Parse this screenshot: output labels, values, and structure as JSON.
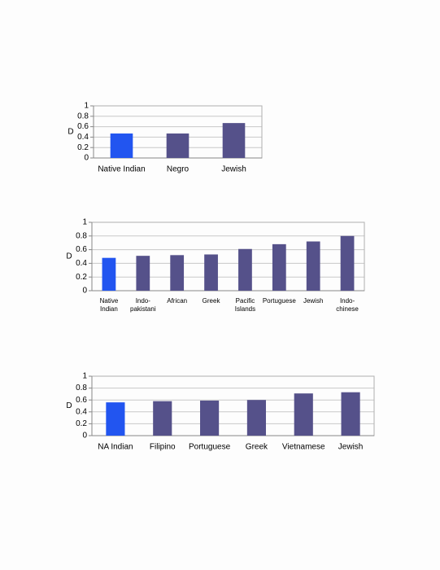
{
  "chart_data": [
    {
      "type": "bar",
      "ylabel": "D",
      "categories": [
        "Native Indian",
        "Negro",
        "Jewish"
      ],
      "values": [
        0.47,
        0.47,
        0.67
      ],
      "colors": [
        "#2255f0",
        "#55518a",
        "#55518a"
      ],
      "ylim": [
        0,
        1
      ],
      "yticks": [
        0,
        0.2,
        0.4,
        0.6,
        0.8,
        1
      ],
      "grid": true
    },
    {
      "type": "bar",
      "ylabel": "D",
      "categories": [
        "Native Indian",
        "Indo-pakistani",
        "African",
        "Greek",
        "Pacific Islands",
        "Portuguese",
        "Jewish",
        "Indo-chinese"
      ],
      "values": [
        0.48,
        0.51,
        0.52,
        0.53,
        0.61,
        0.68,
        0.72,
        0.8
      ],
      "colors": [
        "#2255f0",
        "#55518a",
        "#55518a",
        "#55518a",
        "#55518a",
        "#55518a",
        "#55518a",
        "#55518a"
      ],
      "ylim": [
        0,
        1
      ],
      "yticks": [
        0,
        0.2,
        0.4,
        0.6,
        0.8,
        1
      ],
      "grid": true
    },
    {
      "type": "bar",
      "ylabel": "D",
      "categories": [
        "NA Indian",
        "Filipino",
        "Portuguese",
        "Greek",
        "Vietnamese",
        "Jewish"
      ],
      "values": [
        0.56,
        0.58,
        0.59,
        0.6,
        0.71,
        0.73
      ],
      "colors": [
        "#2255f0",
        "#55518a",
        "#55518a",
        "#55518a",
        "#55518a",
        "#55518a"
      ],
      "ylim": [
        0,
        1
      ],
      "yticks": [
        0,
        0.2,
        0.4,
        0.6,
        0.8,
        1
      ],
      "grid": true
    }
  ]
}
